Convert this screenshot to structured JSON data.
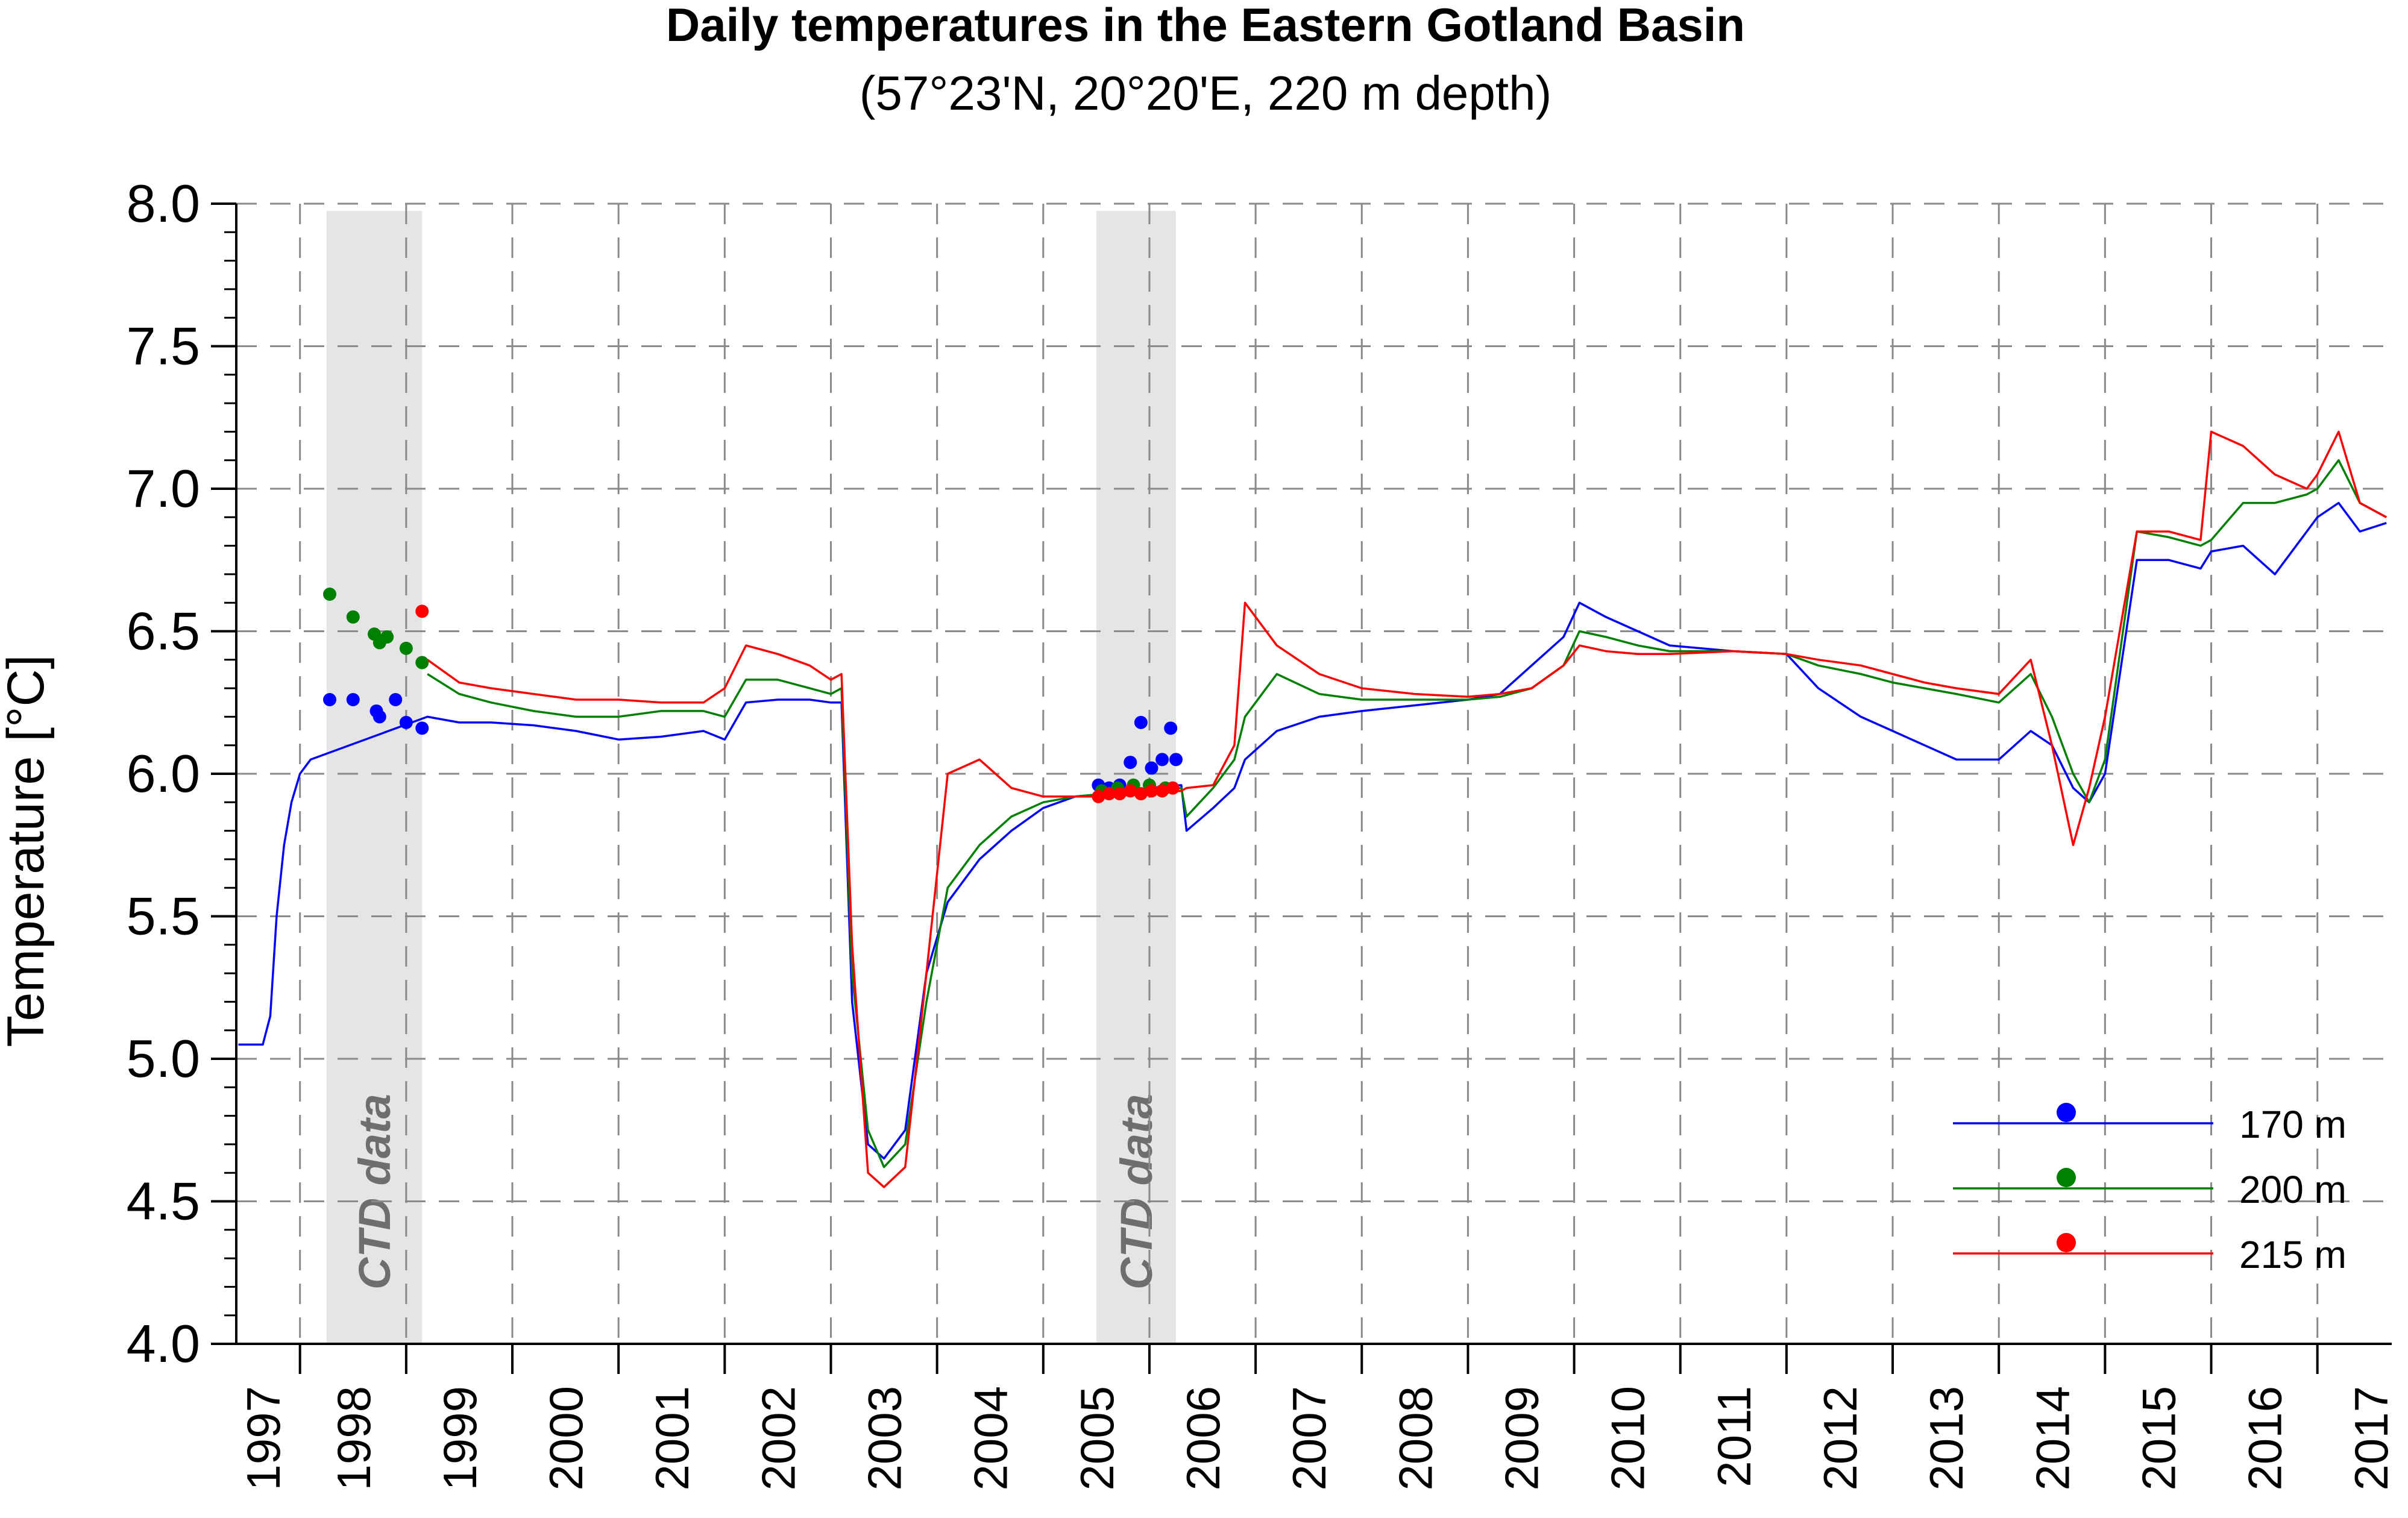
{
  "chart_data": {
    "type": "line",
    "title": "Daily temperatures in the Eastern Gotland Basin",
    "subtitle": "(57°23'N, 20°20'E, 220 m depth)",
    "ylabel": "Temperature [°C]",
    "xlabel": "",
    "ylim": [
      4.0,
      8.0
    ],
    "xlim": [
      1997.4,
      2017.7
    ],
    "grid": true,
    "legend_position": "bottom-right",
    "y_ticks": [
      "4.0",
      "4.5",
      "5.0",
      "5.5",
      "6.0",
      "6.5",
      "7.0",
      "7.5",
      "8.0"
    ],
    "x_ticks": [
      "1997",
      "1998",
      "1999",
      "2000",
      "2001",
      "2002",
      "2003",
      "2004",
      "2005",
      "2006",
      "2007",
      "2008",
      "2009",
      "2010",
      "2011",
      "2012",
      "2013",
      "2014",
      "2015",
      "2016",
      "2017"
    ],
    "shaded_regions": [
      {
        "label": "CTD data",
        "x_start": 1998.25,
        "x_end": 1999.15
      },
      {
        "label": "CTD data",
        "x_start": 2005.5,
        "x_end": 2006.25
      }
    ],
    "series": [
      {
        "name": "170 m",
        "color": "#0000ff",
        "x": [
          1997.42,
          1997.55,
          1997.65,
          1997.72,
          1997.78,
          1997.85,
          1997.92,
          1998.0,
          1998.1,
          1999.2,
          1999.5,
          1999.8,
          2000.2,
          2000.6,
          2001.0,
          2001.4,
          2001.8,
          2002.0,
          2002.2,
          2002.5,
          2002.8,
          2003.0,
          2003.1,
          2003.2,
          2003.35,
          2003.5,
          2003.7,
          2003.9,
          2004.1,
          2004.4,
          2004.7,
          2005.0,
          2005.3,
          2005.6,
          2006.0,
          2006.3,
          2006.35,
          2006.6,
          2006.8,
          2006.9,
          2007.2,
          2007.6,
          2008.0,
          2008.5,
          2009.0,
          2009.3,
          2009.6,
          2009.9,
          2010.05,
          2010.3,
          2010.6,
          2010.9,
          2011.5,
          2012.0,
          2012.3,
          2012.7,
          2013.0,
          2013.3,
          2013.6,
          2014.0,
          2014.3,
          2014.5,
          2014.7,
          2014.85,
          2015.0,
          2015.3,
          2015.6,
          2015.9,
          2016.0,
          2016.3,
          2016.6,
          2016.9,
          2017.0,
          2017.2,
          2017.4,
          2017.65
        ],
        "values": [
          5.05,
          5.05,
          5.05,
          5.15,
          5.5,
          5.75,
          5.9,
          6.0,
          6.05,
          6.2,
          6.18,
          6.18,
          6.17,
          6.15,
          6.12,
          6.13,
          6.15,
          6.12,
          6.25,
          6.26,
          6.26,
          6.25,
          6.25,
          5.2,
          4.7,
          4.65,
          4.75,
          5.3,
          5.55,
          5.7,
          5.8,
          5.88,
          5.92,
          5.93,
          5.95,
          5.96,
          5.8,
          5.88,
          5.95,
          6.05,
          6.15,
          6.2,
          6.22,
          6.24,
          6.26,
          6.28,
          6.38,
          6.48,
          6.6,
          6.55,
          6.5,
          6.45,
          6.43,
          6.42,
          6.3,
          6.2,
          6.15,
          6.1,
          6.05,
          6.05,
          6.15,
          6.1,
          5.95,
          5.9,
          6.0,
          6.75,
          6.75,
          6.72,
          6.78,
          6.8,
          6.7,
          6.85,
          6.9,
          6.95,
          6.85,
          6.88
        ]
      },
      {
        "name": "200 m",
        "color": "#008000",
        "x": [
          1999.2,
          1999.5,
          1999.8,
          2000.2,
          2000.6,
          2001.0,
          2001.4,
          2001.8,
          2002.0,
          2002.2,
          2002.5,
          2002.8,
          2003.0,
          2003.1,
          2003.2,
          2003.35,
          2003.5,
          2003.7,
          2003.9,
          2004.1,
          2004.4,
          2004.7,
          2005.0,
          2005.3,
          2005.6,
          2006.0,
          2006.3,
          2006.35,
          2006.6,
          2006.8,
          2006.9,
          2007.2,
          2007.6,
          2008.0,
          2008.5,
          2009.0,
          2009.3,
          2009.6,
          2009.9,
          2010.05,
          2010.3,
          2010.6,
          2010.9,
          2011.5,
          2012.0,
          2012.3,
          2012.7,
          2013.0,
          2013.3,
          2013.6,
          2014.0,
          2014.3,
          2014.5,
          2014.7,
          2014.85,
          2015.0,
          2015.3,
          2015.6,
          2015.9,
          2016.0,
          2016.3,
          2016.6,
          2016.9,
          2017.0,
          2017.2,
          2017.4,
          2017.65
        ],
        "values": [
          6.35,
          6.28,
          6.25,
          6.22,
          6.2,
          6.2,
          6.22,
          6.22,
          6.2,
          6.33,
          6.33,
          6.3,
          6.28,
          6.3,
          5.3,
          4.75,
          4.62,
          4.7,
          5.2,
          5.6,
          5.75,
          5.85,
          5.9,
          5.92,
          5.93,
          5.94,
          5.95,
          5.85,
          5.95,
          6.05,
          6.2,
          6.35,
          6.28,
          6.26,
          6.26,
          6.26,
          6.27,
          6.3,
          6.38,
          6.5,
          6.48,
          6.45,
          6.43,
          6.43,
          6.42,
          6.38,
          6.35,
          6.32,
          6.3,
          6.28,
          6.25,
          6.35,
          6.2,
          6.0,
          5.9,
          6.05,
          6.85,
          6.83,
          6.8,
          6.82,
          6.95,
          6.95,
          6.98,
          7.0,
          7.1,
          6.95,
          6.9
        ]
      },
      {
        "name": "215 m",
        "color": "#ff0000",
        "x": [
          1999.2,
          1999.5,
          1999.8,
          2000.2,
          2000.6,
          2001.0,
          2001.4,
          2001.8,
          2002.0,
          2002.2,
          2002.5,
          2002.8,
          2003.0,
          2003.1,
          2003.2,
          2003.35,
          2003.5,
          2003.7,
          2003.9,
          2004.1,
          2004.4,
          2004.7,
          2005.0,
          2005.3,
          2005.6,
          2006.0,
          2006.3,
          2006.35,
          2006.6,
          2006.8,
          2006.9,
          2007.2,
          2007.6,
          2008.0,
          2008.5,
          2009.0,
          2009.3,
          2009.6,
          2009.9,
          2010.05,
          2010.3,
          2010.6,
          2010.9,
          2011.5,
          2012.0,
          2012.3,
          2012.7,
          2013.0,
          2013.3,
          2013.6,
          2014.0,
          2014.3,
          2014.5,
          2014.7,
          2014.85,
          2015.0,
          2015.3,
          2015.6,
          2015.9,
          2016.0,
          2016.3,
          2016.6,
          2016.9,
          2017.0,
          2017.2,
          2017.4,
          2017.65
        ],
        "values": [
          6.4,
          6.32,
          6.3,
          6.28,
          6.26,
          6.26,
          6.25,
          6.25,
          6.3,
          6.45,
          6.42,
          6.38,
          6.33,
          6.35,
          5.4,
          4.6,
          4.55,
          4.62,
          5.3,
          6.0,
          6.05,
          5.95,
          5.92,
          5.92,
          5.92,
          5.93,
          5.94,
          5.95,
          5.96,
          6.1,
          6.6,
          6.45,
          6.35,
          6.3,
          6.28,
          6.27,
          6.28,
          6.3,
          6.38,
          6.45,
          6.43,
          6.42,
          6.42,
          6.43,
          6.42,
          6.4,
          6.38,
          6.35,
          6.32,
          6.3,
          6.28,
          6.4,
          6.1,
          5.75,
          5.95,
          6.2,
          6.85,
          6.85,
          6.82,
          7.2,
          7.15,
          7.05,
          7.0,
          7.05,
          7.2,
          6.95,
          6.9
        ]
      }
    ],
    "ctd_points": [
      {
        "series": "170 m",
        "color": "#0000ff",
        "x": [
          1998.28,
          1998.5,
          1998.72,
          1998.75,
          1998.9,
          1999.0,
          1999.15,
          2005.52,
          2005.62,
          2005.72,
          2005.82,
          2005.92,
          2006.02,
          2006.12,
          2006.2,
          2006.25
        ],
        "values": [
          6.26,
          6.26,
          6.22,
          6.2,
          6.26,
          6.18,
          6.16,
          5.96,
          5.95,
          5.96,
          6.04,
          6.18,
          6.02,
          6.05,
          6.16,
          6.05
        ]
      },
      {
        "series": "200 m",
        "color": "#008000",
        "x": [
          1998.28,
          1998.5,
          1998.7,
          1998.75,
          1998.82,
          1999.0,
          1999.15,
          2005.55,
          2005.7,
          2005.85,
          2006.0,
          2006.15
        ],
        "values": [
          6.63,
          6.55,
          6.49,
          6.46,
          6.48,
          6.44,
          6.39,
          5.94,
          5.95,
          5.96,
          5.96,
          5.95
        ]
      },
      {
        "series": "215 m",
        "color": "#ff0000",
        "x": [
          1999.15,
          2005.52,
          2005.62,
          2005.72,
          2005.82,
          2005.92,
          2006.02,
          2006.12,
          2006.22
        ],
        "values": [
          6.57,
          5.92,
          5.93,
          5.93,
          5.94,
          5.93,
          5.94,
          5.94,
          5.95
        ]
      }
    ]
  }
}
